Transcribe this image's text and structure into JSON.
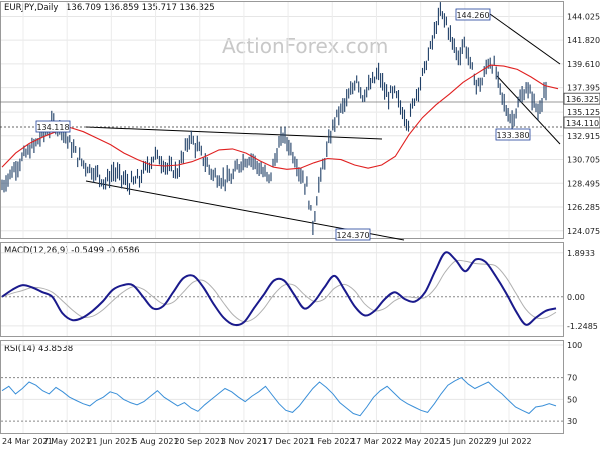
{
  "chart_data": [
    {
      "type": "candlestick",
      "title": "EURJPY,Daily",
      "ohlc_readout": "136.709 136.859 135.717 136.325",
      "watermark": "ActionForex.com",
      "ylim": [
        123.4,
        145.0
      ],
      "y_ticks": [
        "144.025",
        "141.820",
        "139.610",
        "137.395",
        "135.125",
        "132.915",
        "130.705",
        "128.495",
        "126.285",
        "124.075"
      ],
      "y_tick_values": [
        144.025,
        141.82,
        139.61,
        137.395,
        135.125,
        132.915,
        130.705,
        128.495,
        126.285,
        124.075
      ],
      "x_ticks": [
        "24 Mar 2021",
        "7 May 2021",
        "21 Jun 2021",
        "5 Aug 2021",
        "20 Sep 2021",
        "3 Nov 2021",
        "17 Dec 2021",
        "1 Feb 2022",
        "17 Mar 2022",
        "2 May 2022",
        "15 Jun 2022",
        "29 Jul 2022"
      ],
      "current_price": {
        "value": 136.325,
        "label": "136.325"
      },
      "support_line": {
        "value": 134.11,
        "label": "134.110"
      },
      "annotations": [
        {
          "label": "134.118",
          "value": 134.118
        },
        {
          "label": "144.260",
          "value": 144.26
        },
        {
          "label": "124.370",
          "value": 124.37
        },
        {
          "label": "133.380",
          "value": 133.38
        }
      ],
      "colors": {
        "price": "#1f3f66",
        "moving_average": "#e02020",
        "trendline": "#000000"
      },
      "moving_average_series": [
        130.0,
        131.3,
        132.2,
        132.8,
        133.3,
        133.7,
        133.3,
        132.7,
        132.1,
        131.3,
        130.7,
        130.2,
        130.1,
        130.2,
        130.5,
        131.0,
        131.6,
        131.7,
        131.3,
        130.6,
        130.0,
        129.8,
        129.9,
        130.4,
        130.8,
        130.7,
        130.2,
        129.9,
        130.2,
        131.0,
        133.0,
        134.6,
        135.8,
        136.8,
        137.9,
        138.7,
        139.5,
        139.4,
        139.1,
        138.4,
        137.6,
        137.3
      ]
    },
    {
      "type": "line",
      "title": "MACD(12,26,9) -0.5499 -0.6586",
      "ylim": [
        -1.6,
        2.1
      ],
      "y_ticks": [
        "1.8933",
        "0.00",
        "-1.2485"
      ],
      "y_tick_values": [
        1.8933,
        0.0,
        -1.2485
      ],
      "macd": [
        0.0,
        0.3,
        0.5,
        0.4,
        0.2,
        0.0,
        -0.7,
        -1.0,
        -0.9,
        -0.6,
        -0.2,
        0.3,
        0.5,
        0.5,
        0.0,
        -0.5,
        -0.4,
        0.2,
        0.8,
        0.9,
        0.4,
        -0.3,
        -0.9,
        -1.2,
        -1.1,
        -0.5,
        0.1,
        0.7,
        0.7,
        0.1,
        -0.5,
        -0.2,
        0.4,
        0.9,
        0.3,
        -0.4,
        -0.8,
        -0.6,
        -0.1,
        0.2,
        -0.1,
        -0.2,
        0.2,
        1.1,
        1.9,
        1.6,
        1.1,
        1.6,
        1.5,
        0.9,
        0.2,
        -0.6,
        -1.2,
        -0.9,
        -0.6,
        -0.5
      ]
    },
    {
      "type": "line",
      "title": "RSI(14) 43.8538",
      "ylim": [
        20,
        100
      ],
      "y_ticks": [
        "100",
        "70",
        "50",
        "30"
      ],
      "y_tick_values": [
        100,
        70,
        50,
        30
      ],
      "rsi": [
        58,
        62,
        55,
        60,
        66,
        63,
        58,
        55,
        61,
        57,
        52,
        49,
        46,
        44,
        49,
        52,
        57,
        55,
        50,
        47,
        45,
        48,
        53,
        58,
        52,
        48,
        44,
        47,
        42,
        39,
        45,
        50,
        55,
        60,
        57,
        52,
        48,
        53,
        57,
        62,
        54,
        46,
        40,
        38,
        44,
        52,
        60,
        66,
        61,
        55,
        47,
        42,
        37,
        35,
        43,
        52,
        58,
        62,
        56,
        50,
        46,
        43,
        40,
        38,
        46,
        55,
        63,
        67,
        70,
        64,
        60,
        63,
        66,
        60,
        55,
        49,
        43,
        40,
        37,
        43,
        44,
        46,
        44
      ]
    }
  ],
  "layout_note": ""
}
